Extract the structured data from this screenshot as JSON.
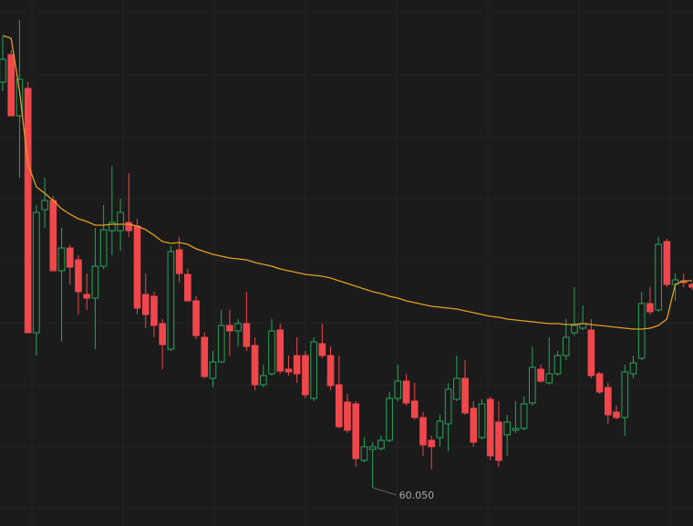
{
  "chart_data": {
    "type": "candlestick",
    "grid": true,
    "up_color": "#26a65b",
    "down_color": "#f0474d",
    "open": [
      68.95,
      69.55,
      68.21,
      68.81,
      63.45,
      66.15,
      66.35,
      64.81,
      65.31,
      65.05,
      64.29,
      64.21,
      64.91,
      65.69,
      65.69,
      65.87,
      65.79,
      64.29,
      64.25,
      63.65,
      63.09,
      65.27,
      64.73,
      64.15,
      63.35,
      62.45,
      62.81,
      63.61,
      63.49,
      63.65,
      63.17,
      62.31,
      62.55,
      63.51,
      62.65,
      62.95,
      62.95,
      62.01,
      63.21,
      62.95,
      62.31,
      61.93,
      61.89,
      60.65,
      60.89,
      60.91,
      61.09,
      62.01,
      62.39,
      61.95,
      61.59,
      61.09,
      61.15,
      61.45,
      61.99,
      62.45,
      61.79,
      61.15,
      61.99,
      61.49,
      61.21,
      61.31,
      61.35,
      61.91,
      62.65,
      62.35,
      62.55,
      62.95,
      63.45,
      63.55,
      63.51,
      62.55,
      62.25,
      61.71,
      61.59,
      62.55,
      62.89,
      64.09,
      63.95,
      65.45,
      64.51,
      64.59,
      64.51
    ],
    "high": [
      69.95,
      69.65,
      70.31,
      68.95,
      66.25,
      66.85,
      66.45,
      65.75,
      65.39,
      65.15,
      64.75,
      65.75,
      66.25,
      67.11,
      66.39,
      66.95,
      65.95,
      64.75,
      64.35,
      63.75,
      65.35,
      65.55,
      64.85,
      64.25,
      63.45,
      63.05,
      63.95,
      63.95,
      63.75,
      64.35,
      63.35,
      62.75,
      63.75,
      63.65,
      62.95,
      63.35,
      63.05,
      63.35,
      63.65,
      63.15,
      62.95,
      62.11,
      61.95,
      61.15,
      61.05,
      61.19,
      62.15,
      62.75,
      62.55,
      62.35,
      61.71,
      61.19,
      61.65,
      62.35,
      62.95,
      62.85,
      61.95,
      61.99,
      62.05,
      61.95,
      61.65,
      61.95,
      62.05,
      63.15,
      62.75,
      63.35,
      63.05,
      63.75,
      64.45,
      64.05,
      63.75,
      62.59,
      62.35,
      61.85,
      62.75,
      62.95,
      64.35,
      64.45,
      65.55,
      65.51,
      64.75,
      64.75,
      64.55
    ],
    "low": [
      68.75,
      68.21,
      66.85,
      63.45,
      62.95,
      65.75,
      64.81,
      63.25,
      64.51,
      63.85,
      63.95,
      63.09,
      64.85,
      65.15,
      65.25,
      65.55,
      63.85,
      63.55,
      63.35,
      62.65,
      63.05,
      64.55,
      64.15,
      63.31,
      62.45,
      62.25,
      62.79,
      62.95,
      63.15,
      63.05,
      62.19,
      62.25,
      62.51,
      62.55,
      62.51,
      62.35,
      62.01,
      61.95,
      62.89,
      62.19,
      61.35,
      61.25,
      60.51,
      60.61,
      60.05,
      60.87,
      61.05,
      61.95,
      61.85,
      61.55,
      60.75,
      60.45,
      60.95,
      60.85,
      61.95,
      61.65,
      60.95,
      61.11,
      60.65,
      60.51,
      60.75,
      61.25,
      61.31,
      61.85,
      62.35,
      62.31,
      62.51,
      62.85,
      63.39,
      63.51,
      62.45,
      62.11,
      61.45,
      61.55,
      61.19,
      62.45,
      62.85,
      63.85,
      63.91,
      64.45,
      64.15,
      64.45,
      64.39
    ],
    "close": [
      69.45,
      68.21,
      69.01,
      63.45,
      66.09,
      66.35,
      64.81,
      65.31,
      64.89,
      64.35,
      64.21,
      64.91,
      65.71,
      65.87,
      66.09,
      65.69,
      63.99,
      63.85,
      63.61,
      63.19,
      65.23,
      64.75,
      64.15,
      63.39,
      62.49,
      62.81,
      63.61,
      63.49,
      63.65,
      63.15,
      62.31,
      62.51,
      63.49,
      62.61,
      62.59,
      62.55,
      62.09,
      63.25,
      62.95,
      62.29,
      61.39,
      61.31,
      60.69,
      60.95,
      60.95,
      61.09,
      62.01,
      62.39,
      61.91,
      61.59,
      60.99,
      60.95,
      61.51,
      62.21,
      62.45,
      61.69,
      61.05,
      61.89,
      60.75,
      60.65,
      61.49,
      61.35,
      61.89,
      62.69,
      62.39,
      62.55,
      62.95,
      63.35,
      63.61,
      63.65,
      62.51,
      62.15,
      61.65,
      61.59,
      62.59,
      62.79,
      64.09,
      63.91,
      65.39,
      64.51,
      64.61,
      64.55,
      64.45
    ],
    "ma": {
      "color": "#e0a020",
      "values": [
        69.97,
        69.91,
        68.75,
        67.15,
        66.65,
        66.51,
        66.35,
        66.17,
        66.05,
        65.95,
        65.89,
        65.81,
        65.81,
        65.83,
        65.83,
        65.83,
        65.79,
        65.71,
        65.59,
        65.45,
        65.41,
        65.43,
        65.39,
        65.29,
        65.23,
        65.17,
        65.13,
        65.09,
        65.07,
        65.05,
        64.99,
        64.95,
        64.91,
        64.85,
        64.81,
        64.77,
        64.73,
        64.71,
        64.69,
        64.65,
        64.59,
        64.53,
        64.47,
        64.41,
        64.35,
        64.31,
        64.25,
        64.21,
        64.15,
        64.11,
        64.07,
        64.03,
        64.01,
        63.99,
        63.97,
        63.93,
        63.89,
        63.85,
        63.81,
        63.79,
        63.75,
        63.73,
        63.71,
        63.69,
        63.67,
        63.65,
        63.65,
        63.63,
        63.63,
        63.65,
        63.63,
        63.61,
        63.59,
        63.57,
        63.55,
        63.53,
        63.53,
        63.55,
        63.61,
        63.75,
        64.51,
        64.59,
        64.59
      ]
    },
    "low_label": "60.050"
  }
}
